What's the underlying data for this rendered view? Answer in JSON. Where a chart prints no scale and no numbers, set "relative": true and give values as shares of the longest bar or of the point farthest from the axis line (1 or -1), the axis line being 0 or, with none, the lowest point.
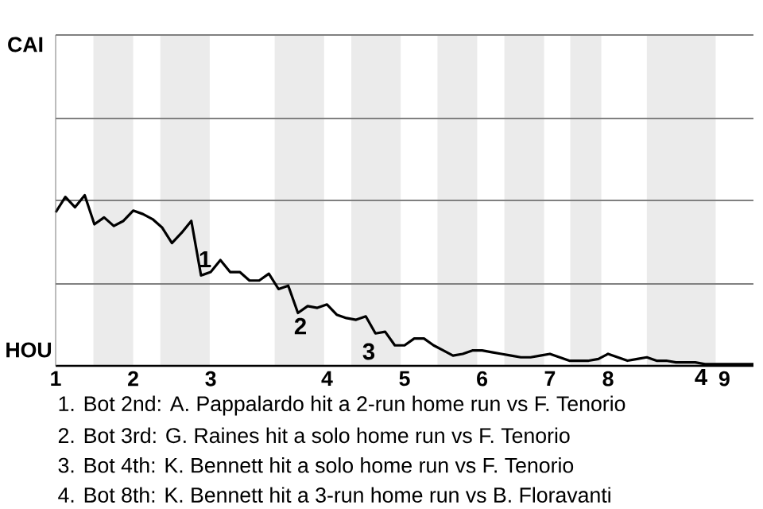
{
  "chart_data": {
    "type": "line",
    "relative": true,
    "ref_lines": [
      {
        "axis": "y",
        "value": 0.48,
        "color": "#808080"
      },
      {
        "axis": "y",
        "value": 0.97,
        "color": "#808080"
      },
      {
        "axis": "y",
        "value": 1.45,
        "color": "#808080"
      },
      {
        "axis": "y",
        "value": 1.94,
        "color": "#808080"
      }
    ],
    "categories": [
      "1",
      null,
      null,
      null,
      null,
      null,
      null,
      null,
      "2",
      null,
      null,
      null,
      null,
      null,
      null,
      null,
      "3",
      null,
      null,
      null,
      null,
      null,
      null,
      null,
      null,
      null,
      null,
      null,
      "4",
      null,
      null,
      null,
      null,
      null,
      null,
      null,
      "5",
      null,
      null,
      null,
      null,
      null,
      null,
      null,
      "6",
      null,
      null,
      null,
      null,
      null,
      null,
      "7",
      null,
      null,
      null,
      null,
      null,
      "8",
      null,
      null,
      null,
      null,
      null,
      null,
      null,
      null,
      null,
      null,
      null,
      "9",
      null,
      null,
      null
    ],
    "series": [
      {
        "color": "#000000",
        "values": [
          0.9,
          0.99,
          0.93,
          1,
          0.83,
          0.87,
          0.82,
          0.85,
          0.91,
          0.89,
          0.86,
          0.81,
          0.72,
          0.78,
          0.85,
          0.53,
          0.55,
          0.62,
          0.55,
          0.55,
          0.5,
          0.5,
          0.54,
          0.45,
          0.47,
          0.31,
          0.35,
          0.34,
          0.36,
          0.3,
          0.28,
          0.27,
          0.29,
          0.19,
          0.2,
          0.12,
          0.12,
          0.16,
          0.16,
          0.12,
          0.09,
          0.06,
          0.07,
          0.09,
          0.09,
          0.08,
          0.07,
          0.06,
          0.05,
          0.05,
          0.06,
          0.07,
          0.05,
          0.03,
          0.03,
          0.03,
          0.04,
          0.07,
          0.05,
          0.03,
          0.04,
          0.05,
          0.03,
          0.03,
          0.02,
          0.02,
          0.02,
          0.01,
          0.01,
          0.01,
          0.01,
          0.01,
          0.01
        ]
      }
    ],
    "annotations": [
      "CAI",
      "HOU",
      "1",
      "2",
      "3",
      "4",
      "1. Bot 2nd: A. Pappalardo hit a 2-run home run vs F. Tenorio",
      "2. Bot 3rd: G. Raines hit a solo home run vs F. Tenorio",
      "3. Bot 4th: K. Bennett hit a solo home run vs F. Tenorio",
      "4. Bot 8th: K. Bennett hit a 3-run home run vs B. Floravanti"
    ]
  }
}
